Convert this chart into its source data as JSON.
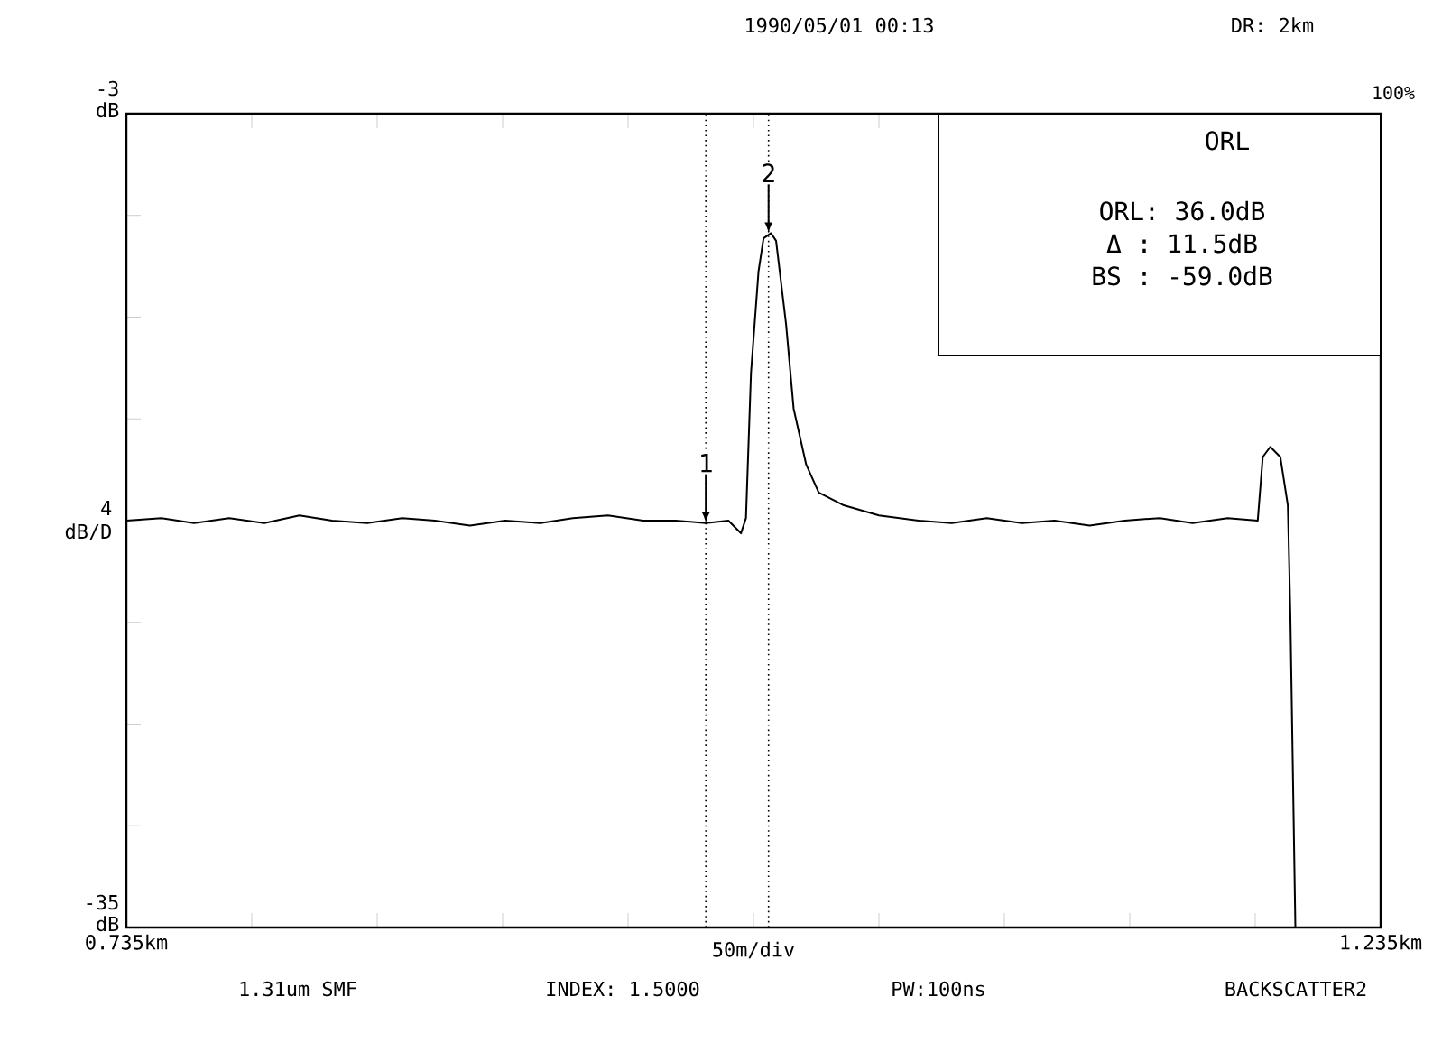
{
  "chart_data": {
    "type": "line",
    "title": "1990/05/01 00:13",
    "subtitle": "DR: 2km",
    "xlabel": "50m/div",
    "ylabel": "4 dB/D",
    "xlim": [
      0.735,
      1.235
    ],
    "xticks": [
      {
        "value": 0.735,
        "label": "0.735km"
      },
      {
        "value": 0.785,
        "label": null
      },
      {
        "value": 0.835,
        "label": null
      },
      {
        "value": 0.885,
        "label": null
      },
      {
        "value": 0.935,
        "label": null
      },
      {
        "value": 0.985,
        "label": null
      },
      {
        "value": 1.035,
        "label": null
      },
      {
        "value": 1.085,
        "label": null
      },
      {
        "value": 1.135,
        "label": null
      },
      {
        "value": 1.185,
        "label": null
      },
      {
        "value": 1.235,
        "label": "1.235km"
      }
    ],
    "ylim": [
      -35,
      -3
    ],
    "yticks": [
      {
        "value": -3,
        "label": "-3 dB"
      },
      {
        "value": -7,
        "label": null
      },
      {
        "value": -11,
        "label": null
      },
      {
        "value": -15,
        "label": null
      },
      {
        "value": -19,
        "label": null
      },
      {
        "value": -23,
        "label": null
      },
      {
        "value": -27,
        "label": null
      },
      {
        "value": -31,
        "label": null
      },
      {
        "value": -35,
        "label": "-35 dB"
      }
    ],
    "series": [
      {
        "color": "#000000",
        "x": [
          0.735,
          0.749,
          0.762,
          0.776,
          0.79,
          0.804,
          0.817,
          0.831,
          0.845,
          0.858,
          0.872,
          0.886,
          0.9,
          0.913,
          0.927,
          0.941,
          0.954,
          0.966,
          0.975,
          0.98,
          0.982,
          0.984,
          0.987,
          0.989,
          0.992,
          0.994,
          0.998,
          1.001,
          1.006,
          1.011,
          1.021,
          1.035,
          1.051,
          1.064,
          1.078,
          1.092,
          1.105,
          1.119,
          1.133,
          1.147,
          1.16,
          1.174,
          1.186,
          1.188,
          1.191,
          1.195,
          1.198,
          1.199,
          1.201
        ],
        "values": [
          -19.0,
          -18.9,
          -19.1,
          -18.9,
          -19.1,
          -18.8,
          -19.0,
          -19.1,
          -18.9,
          -19.0,
          -19.2,
          -19.0,
          -19.1,
          -18.9,
          -18.8,
          -19.0,
          -19.0,
          -19.1,
          -19.0,
          -19.5,
          -18.9,
          -13.2,
          -9.2,
          -7.9,
          -7.7,
          -8.0,
          -11.3,
          -14.6,
          -16.8,
          -17.9,
          -18.4,
          -18.8,
          -19.0,
          -19.1,
          -18.9,
          -19.1,
          -19.0,
          -19.2,
          -19.0,
          -18.9,
          -19.1,
          -18.9,
          -19.0,
          -16.5,
          -16.1,
          -16.5,
          -18.4,
          -22.7,
          -35.0
        ]
      }
    ],
    "ref_lines": [
      {
        "axis": "x",
        "value": 0.966,
        "line_style": "dotted"
      },
      {
        "axis": "x",
        "value": 0.991,
        "line_style": "dotted"
      }
    ],
    "annotations": [
      {
        "text": "1",
        "x": 0.966,
        "y": -19.1
      },
      {
        "text": "2",
        "x": 0.991,
        "y": -7.7
      },
      "100%",
      "ORL",
      "ORL: 36.0dB",
      "Δ : 11.5dB",
      "BS : -59.0dB",
      "1.31um SMF",
      "INDEX: 1.5000",
      "PW:100ns",
      "BACKSCATTER2"
    ]
  }
}
